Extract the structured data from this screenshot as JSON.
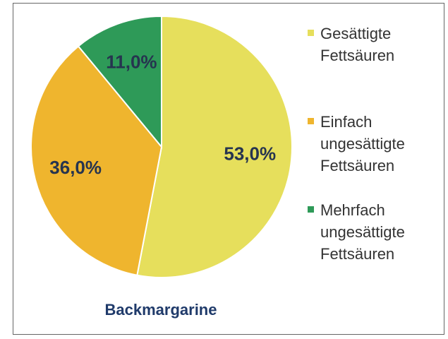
{
  "chart_data": {
    "type": "pie",
    "title": "Backmargarine",
    "categories": [
      "Gesättigte Fettsäuren",
      "Einfach ungesättigte Fettsäuren",
      "Mehrfach ungesättigte Fettsäuren"
    ],
    "values": [
      53,
      36,
      11
    ],
    "value_labels": [
      "53,0%",
      "36,0%",
      "11,0%"
    ],
    "colors": [
      "#e6df5c",
      "#efb52e",
      "#2e9a58"
    ],
    "legend": "right"
  }
}
